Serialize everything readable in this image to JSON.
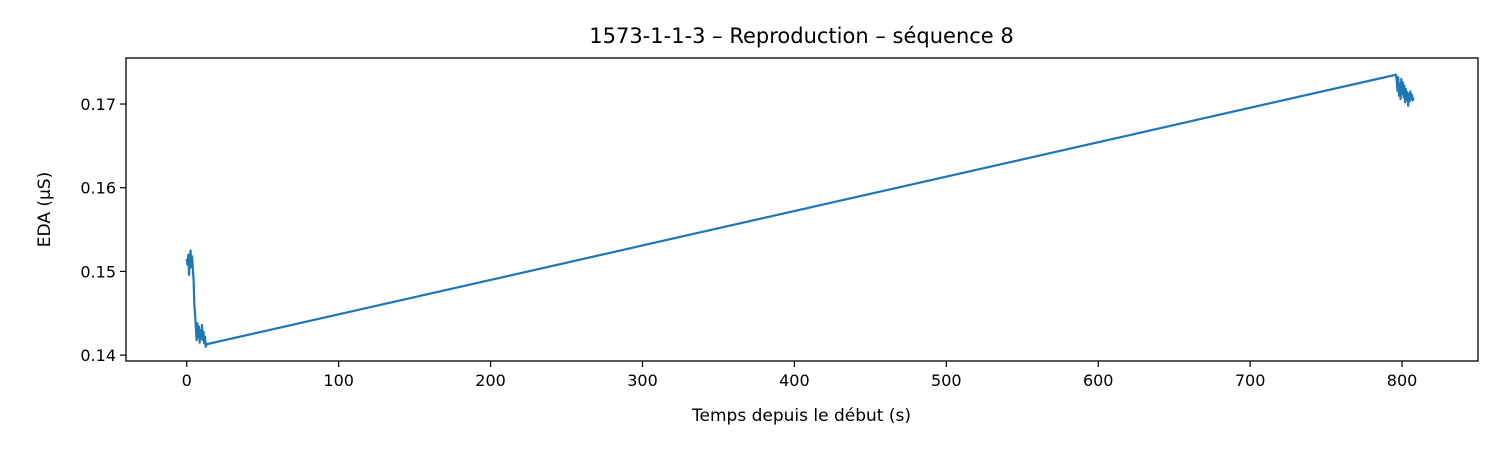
{
  "chart_data": {
    "type": "line",
    "title": "1573-1-1-3 – Reproduction – séquence 8",
    "xlabel": "Temps depuis le début (s)",
    "ylabel": "EDA (µS)",
    "xlim": [
      -40,
      850
    ],
    "ylim": [
      0.1393,
      0.1755
    ],
    "x_ticks": [
      0,
      100,
      200,
      300,
      400,
      500,
      600,
      700,
      800
    ],
    "y_ticks": [
      0.14,
      0.15,
      0.16,
      0.17
    ],
    "y_tick_labels": [
      "0.14",
      "0.15",
      "0.16",
      "0.17"
    ],
    "grid": false,
    "legend": "none",
    "line_color": "#1f77b4",
    "series": [
      {
        "x": [
          0.0,
          0.5,
          1.0,
          1.5,
          2.0,
          2.5,
          3.0,
          3.5,
          4.0,
          4.5,
          5.0,
          5.5,
          6.0,
          6.5,
          7.0,
          7.5,
          8.0,
          8.5,
          9.0,
          9.5,
          10.0,
          10.5,
          11.0,
          11.5,
          12.0,
          12.5,
          13.0,
          796.0,
          796.5,
          797.0,
          797.5,
          798.0,
          798.5,
          799.0,
          799.5,
          800.0,
          800.5,
          801.0,
          801.5,
          802.0,
          802.5,
          803.0,
          803.5,
          804.0,
          804.5,
          805.0,
          805.5,
          806.0,
          806.5,
          807.0,
          807.5
        ],
        "y": [
          0.1515,
          0.1508,
          0.152,
          0.1496,
          0.1512,
          0.1525,
          0.1505,
          0.1518,
          0.1503,
          0.149,
          0.146,
          0.1448,
          0.1432,
          0.1418,
          0.1438,
          0.1422,
          0.1434,
          0.1415,
          0.143,
          0.142,
          0.1436,
          0.1418,
          0.1428,
          0.1414,
          0.1422,
          0.141,
          0.1413,
          0.1735,
          0.1728,
          0.1716,
          0.1732,
          0.171,
          0.1724,
          0.1706,
          0.173,
          0.1712,
          0.1726,
          0.1708,
          0.1722,
          0.1702,
          0.1718,
          0.1705,
          0.1714,
          0.1698,
          0.1712,
          0.1703,
          0.1715,
          0.1706,
          0.1711,
          0.1704,
          0.1708
        ]
      }
    ]
  }
}
